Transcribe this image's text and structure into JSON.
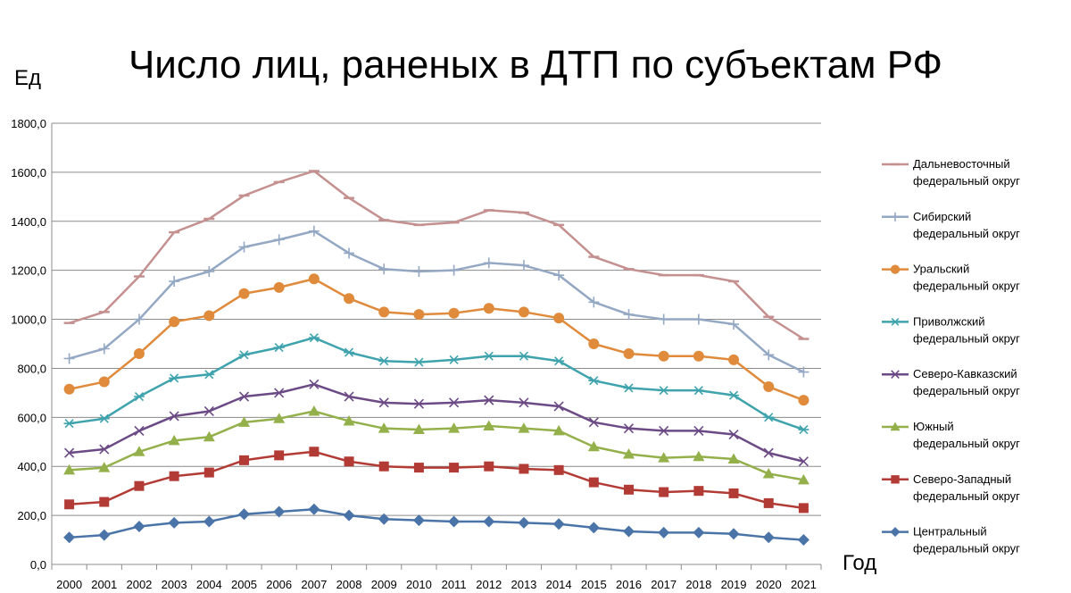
{
  "chart_data": {
    "type": "line",
    "title": "Число лиц, раненых в ДТП по субъектам РФ",
    "ylabel": "Ед",
    "xlabel": "Год",
    "ylim": [
      0,
      1800
    ],
    "yticks": [
      "0,0",
      "200,0",
      "400,0",
      "600,0",
      "800,0",
      "1000,0",
      "1200,0",
      "1400,0",
      "1600,0",
      "1800,0"
    ],
    "grid": true,
    "legend_position": "right",
    "categories": [
      "2000",
      "2001",
      "2002",
      "2003",
      "2004",
      "2005",
      "2006",
      "2007",
      "2008",
      "2009",
      "2010",
      "2011",
      "2012",
      "2013",
      "2014",
      "2015",
      "2016",
      "2017",
      "2018",
      "2019",
      "2020",
      "2021"
    ],
    "series": [
      {
        "name": "Дальневосточный федеральный округ",
        "label_lines": [
          "Дальневосточный",
          "федеральный округ"
        ],
        "color": "#c49090",
        "marker": "dash",
        "values": [
          985,
          1030,
          1175,
          1355,
          1410,
          1505,
          1560,
          1605,
          1495,
          1405,
          1385,
          1395,
          1445,
          1435,
          1385,
          1255,
          1205,
          1180,
          1180,
          1155,
          1010,
          920
        ]
      },
      {
        "name": "Сибирский федеральный округ",
        "label_lines": [
          "Сибирский",
          "федеральный округ"
        ],
        "color": "#94a8c4",
        "marker": "plus",
        "values": [
          840,
          880,
          1000,
          1155,
          1195,
          1295,
          1325,
          1360,
          1270,
          1205,
          1195,
          1200,
          1230,
          1220,
          1180,
          1070,
          1020,
          1000,
          1000,
          980,
          855,
          785
        ]
      },
      {
        "name": "Уральский федеральный округ",
        "label_lines": [
          "Уральский",
          "федеральный округ"
        ],
        "color": "#e08a3c",
        "marker": "circle",
        "values": [
          715,
          745,
          860,
          990,
          1015,
          1105,
          1130,
          1165,
          1085,
          1030,
          1020,
          1025,
          1045,
          1030,
          1005,
          900,
          860,
          850,
          850,
          835,
          725,
          670
        ]
      },
      {
        "name": "Приволжский федеральный округ",
        "label_lines": [
          "Приволжский",
          "федеральный округ"
        ],
        "color": "#3fa3ad",
        "marker": "asterisk",
        "values": [
          575,
          595,
          685,
          760,
          775,
          855,
          885,
          925,
          865,
          830,
          825,
          835,
          850,
          850,
          830,
          750,
          720,
          710,
          710,
          690,
          600,
          550
        ]
      },
      {
        "name": "Северо-Кавказский федеральный округ",
        "label_lines": [
          "Северо-Кавказский",
          "федеральный округ"
        ],
        "color": "#6b4a85",
        "marker": "x",
        "values": [
          455,
          470,
          545,
          605,
          625,
          685,
          700,
          735,
          685,
          660,
          655,
          660,
          670,
          660,
          645,
          580,
          555,
          545,
          545,
          530,
          455,
          420
        ]
      },
      {
        "name": "Южный федеральный округ",
        "label_lines": [
          "Южный",
          "федеральный округ"
        ],
        "color": "#93b04a",
        "marker": "triangle",
        "values": [
          385,
          395,
          460,
          505,
          520,
          580,
          595,
          625,
          585,
          555,
          550,
          555,
          565,
          555,
          545,
          480,
          450,
          435,
          440,
          430,
          370,
          345
        ]
      },
      {
        "name": "Северо-Западный федеральный округ",
        "label_lines": [
          "Северо-Западный",
          "федеральный округ"
        ],
        "color": "#b23b35",
        "marker": "square",
        "values": [
          245,
          255,
          320,
          360,
          375,
          425,
          445,
          460,
          420,
          400,
          395,
          395,
          400,
          390,
          385,
          335,
          305,
          295,
          300,
          290,
          250,
          230
        ]
      },
      {
        "name": "Центральный федеральный округ",
        "label_lines": [
          "Центральный",
          "федеральный округ"
        ],
        "color": "#4a74a8",
        "marker": "diamond",
        "values": [
          110,
          120,
          155,
          170,
          175,
          205,
          215,
          225,
          200,
          185,
          180,
          175,
          175,
          170,
          165,
          150,
          135,
          130,
          130,
          125,
          110,
          100
        ]
      }
    ]
  }
}
